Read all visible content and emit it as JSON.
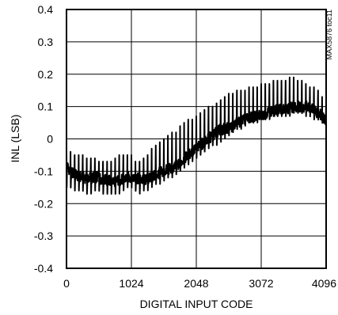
{
  "chart_data": {
    "type": "line",
    "title": "",
    "xlabel": "DIGITAL INPUT CODE",
    "ylabel": "INL (LSB)",
    "xlim": [
      0,
      4096
    ],
    "ylim": [
      -0.4,
      0.4
    ],
    "x_ticks": [
      0,
      1024,
      2048,
      3072,
      4096
    ],
    "x_tick_labels": [
      "0",
      "1024",
      "2048",
      "3072",
      "4096"
    ],
    "y_ticks": [
      -0.4,
      -0.3,
      -0.2,
      -0.1,
      0,
      0.1,
      0.2,
      0.3,
      0.4
    ],
    "y_tick_labels": [
      "-0.4",
      "-0.3",
      "-0.2",
      "-0.1",
      "0",
      "0.1",
      "0.2",
      "0.3",
      "0.4"
    ],
    "grid": true,
    "legend": "none",
    "side_note": "MAX5876 toc11",
    "colors": {
      "line": "#000000",
      "grid": "#000000",
      "background": "#ffffff"
    },
    "series": [
      {
        "x": [
          0,
          64,
          128,
          192,
          256,
          320,
          384,
          448,
          512,
          576,
          640,
          704,
          768,
          832,
          896,
          960,
          1024,
          1088,
          1152,
          1216,
          1280,
          1344,
          1408,
          1472,
          1536,
          1600,
          1664,
          1728,
          1792,
          1856,
          1920,
          1984,
          2048,
          2112,
          2176,
          2240,
          2304,
          2368,
          2432,
          2496,
          2560,
          2624,
          2688,
          2752,
          2816,
          2880,
          2944,
          3008,
          3072,
          3136,
          3200,
          3264,
          3328,
          3392,
          3456,
          3520,
          3584,
          3648,
          3712,
          3776,
          3840,
          3904,
          3968,
          4032,
          4096
        ],
        "center": [
          -0.08,
          -0.1,
          -0.11,
          -0.115,
          -0.12,
          -0.12,
          -0.12,
          -0.118,
          -0.12,
          -0.125,
          -0.128,
          -0.13,
          -0.13,
          -0.128,
          -0.125,
          -0.12,
          -0.118,
          -0.12,
          -0.125,
          -0.128,
          -0.125,
          -0.12,
          -0.112,
          -0.105,
          -0.1,
          -0.095,
          -0.09,
          -0.085,
          -0.075,
          -0.06,
          -0.05,
          -0.04,
          -0.03,
          -0.02,
          -0.01,
          0.0,
          0.01,
          0.02,
          0.03,
          0.03,
          0.035,
          0.04,
          0.05,
          0.055,
          0.06,
          0.065,
          0.07,
          0.07,
          0.075,
          0.08,
          0.085,
          0.085,
          0.09,
          0.09,
          0.09,
          0.095,
          0.1,
          0.1,
          0.1,
          0.1,
          0.1,
          0.09,
          0.08,
          0.07,
          0.06
        ],
        "spike": [
          -0.04,
          -0.04,
          -0.05,
          -0.05,
          -0.05,
          -0.06,
          -0.06,
          -0.06,
          -0.07,
          -0.07,
          -0.07,
          -0.07,
          -0.06,
          -0.05,
          -0.05,
          -0.05,
          -0.05,
          -0.07,
          -0.07,
          -0.06,
          -0.05,
          -0.03,
          -0.02,
          -0.01,
          0.0,
          0.01,
          0.02,
          0.02,
          0.04,
          0.05,
          0.06,
          0.06,
          0.07,
          0.08,
          0.09,
          0.1,
          0.1,
          0.11,
          0.12,
          0.13,
          0.14,
          0.14,
          0.15,
          0.15,
          0.15,
          0.16,
          0.16,
          0.16,
          0.17,
          0.17,
          0.17,
          0.18,
          0.18,
          0.18,
          0.18,
          0.19,
          0.19,
          0.18,
          0.18,
          0.17,
          0.16,
          0.16,
          0.15,
          0.13,
          0.12
        ],
        "trough": [
          -0.15,
          -0.15,
          -0.16,
          -0.16,
          -0.16,
          -0.17,
          -0.17,
          -0.16,
          -0.16,
          -0.17,
          -0.17,
          -0.17,
          -0.17,
          -0.17,
          -0.16,
          -0.15,
          -0.15,
          -0.16,
          -0.17,
          -0.16,
          -0.16,
          -0.15,
          -0.14,
          -0.14,
          -0.13,
          -0.12,
          -0.12,
          -0.11,
          -0.1,
          -0.09,
          -0.08,
          -0.07,
          -0.06,
          -0.05,
          -0.04,
          -0.03,
          -0.02,
          -0.02,
          -0.01,
          0.0,
          0.01,
          0.02,
          0.03,
          0.03,
          0.04,
          0.05,
          0.05,
          0.05,
          0.06,
          0.06,
          0.06,
          0.07,
          0.07,
          0.07,
          0.07,
          0.07,
          0.08,
          0.08,
          0.08,
          0.07,
          0.07,
          0.06,
          0.06,
          0.05,
          0.04
        ]
      }
    ]
  }
}
